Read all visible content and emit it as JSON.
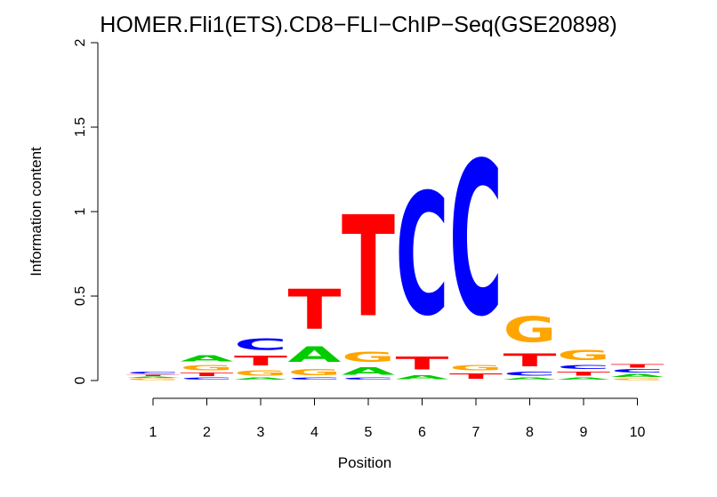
{
  "chart_data": {
    "type": "sequence-logo",
    "title": "HOMER.Fli1(ETS).CD8−FLI−ChIP−Seq(GSE20898)",
    "xlabel": "Position",
    "ylabel": "Information content",
    "ylim": [
      0,
      2
    ],
    "y_ticks": [
      "0",
      "0.5",
      "1",
      "1.5",
      "2"
    ],
    "positions": [
      "1",
      "2",
      "3",
      "4",
      "5",
      "6",
      "7",
      "8",
      "9",
      "10"
    ],
    "colors": {
      "A": "#00cc00",
      "C": "#0000ff",
      "G": "#ffa500",
      "T": "#ff0000"
    },
    "stacks": [
      [
        {
          "base": "G",
          "value": 0.015
        },
        {
          "base": "A",
          "value": 0.01
        },
        {
          "base": "T",
          "value": 0.01
        },
        {
          "base": "C",
          "value": 0.02
        }
      ],
      [
        {
          "base": "C",
          "value": 0.02
        },
        {
          "base": "T",
          "value": 0.03
        },
        {
          "base": "G",
          "value": 0.05
        },
        {
          "base": "A",
          "value": 0.06
        }
      ],
      [
        {
          "base": "A",
          "value": 0.02
        },
        {
          "base": "G",
          "value": 0.05
        },
        {
          "base": "T",
          "value": 0.09
        },
        {
          "base": "C",
          "value": 0.11
        }
      ],
      [
        {
          "base": "C",
          "value": 0.02
        },
        {
          "base": "G",
          "value": 0.06
        },
        {
          "base": "A",
          "value": 0.15
        },
        {
          "base": "T",
          "value": 0.38
        }
      ],
      [
        {
          "base": "C",
          "value": 0.02
        },
        {
          "base": "A",
          "value": 0.07
        },
        {
          "base": "G",
          "value": 0.1
        },
        {
          "base": "T",
          "value": 0.96
        }
      ],
      [
        {
          "base": "A",
          "value": 0.04
        },
        {
          "base": "T",
          "value": 0.12
        },
        {
          "base": "C",
          "value": 1.16
        }
      ],
      [
        {
          "base": "T",
          "value": 0.05
        },
        {
          "base": "G",
          "value": 0.05
        },
        {
          "base": "C",
          "value": 1.46
        }
      ],
      [
        {
          "base": "A",
          "value": 0.02
        },
        {
          "base": "C",
          "value": 0.04
        },
        {
          "base": "T",
          "value": 0.12
        },
        {
          "base": "G",
          "value": 0.24
        }
      ],
      [
        {
          "base": "A",
          "value": 0.02
        },
        {
          "base": "T",
          "value": 0.04
        },
        {
          "base": "C",
          "value": 0.04
        },
        {
          "base": "G",
          "value": 0.1
        }
      ],
      [
        {
          "base": "G",
          "value": 0.015
        },
        {
          "base": "A",
          "value": 0.025
        },
        {
          "base": "C",
          "value": 0.03
        },
        {
          "base": "T",
          "value": 0.03
        }
      ]
    ]
  }
}
